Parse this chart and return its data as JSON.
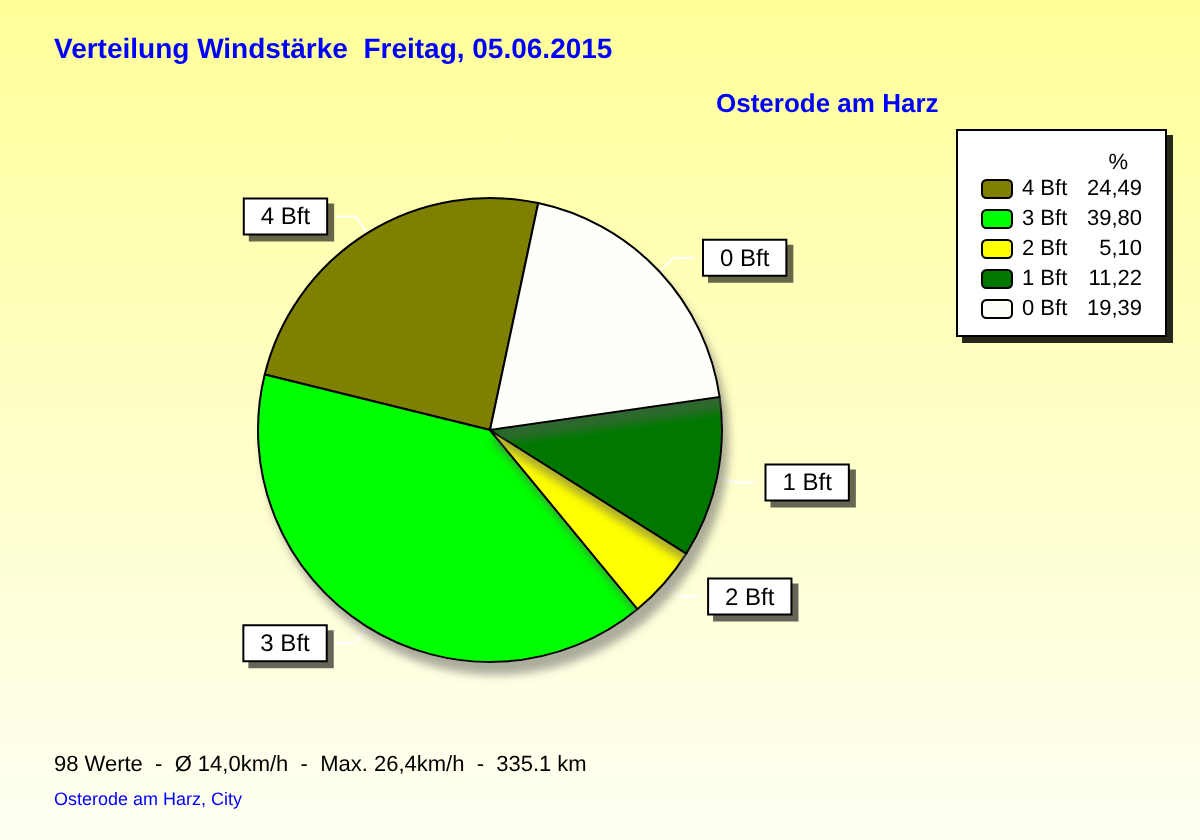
{
  "chart_data": {
    "type": "pie",
    "title": "Verteilung Windstärke  Freitag, 05.06.2015",
    "subtitle": "Osterode am Harz",
    "legend_title": "%",
    "categories": [
      "4 Bft",
      "3 Bft",
      "2 Bft",
      "1 Bft",
      "0 Bft"
    ],
    "values": [
      24.49,
      39.8,
      5.1,
      11.22,
      19.39
    ],
    "value_labels": [
      "24,49",
      "39,80",
      "5,10",
      "11,22",
      "19,39"
    ],
    "colors": [
      "#808000",
      "#00ff00",
      "#ffff00",
      "#007800",
      "#fffffa"
    ],
    "legend": "top right",
    "annotations": [
      "98 Werte  -  Ø 14,0km/h  -  Max. 26,4km/h  -  335.1 km",
      "Osterode am Harz, City"
    ]
  }
}
